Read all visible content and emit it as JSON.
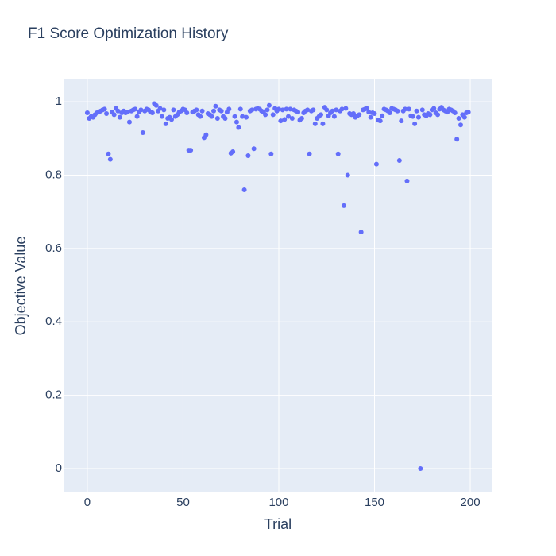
{
  "chart_data": {
    "type": "scatter",
    "title": "F1 Score Optimization History",
    "x_label": "Trial",
    "y_label": "Objective Value",
    "color": "#636efa",
    "grid": true,
    "xlim": [
      -12,
      211.6
    ],
    "ylim": [
      -0.065,
      1.061
    ],
    "xticks": [
      0,
      50,
      100,
      150,
      200
    ],
    "yticks": [
      0,
      0.2,
      0.4,
      0.6,
      0.8,
      1
    ],
    "x": [
      0,
      1,
      2,
      3,
      4,
      5,
      6,
      7,
      8,
      9,
      10,
      11,
      12,
      13,
      14,
      15,
      16,
      17,
      18,
      19,
      20,
      21,
      22,
      23,
      24,
      25,
      26,
      27,
      28,
      29,
      30,
      31,
      32,
      33,
      34,
      35,
      36,
      37,
      38,
      39,
      40,
      41,
      42,
      43,
      44,
      45,
      46,
      47,
      48,
      49,
      50,
      51,
      52,
      53,
      54,
      55,
      56,
      57,
      58,
      59,
      60,
      61,
      62,
      63,
      64,
      65,
      66,
      67,
      68,
      69,
      70,
      71,
      72,
      73,
      74,
      75,
      76,
      77,
      78,
      79,
      80,
      81,
      82,
      83,
      84,
      85,
      86,
      87,
      88,
      89,
      90,
      91,
      92,
      93,
      94,
      95,
      96,
      97,
      98,
      99,
      100,
      101,
      102,
      103,
      104,
      105,
      106,
      107,
      108,
      109,
      110,
      111,
      112,
      113,
      114,
      115,
      116,
      117,
      118,
      119,
      120,
      121,
      122,
      123,
      124,
      125,
      126,
      127,
      128,
      129,
      130,
      131,
      132,
      133,
      134,
      135,
      136,
      137,
      138,
      139,
      140,
      141,
      142,
      143,
      144,
      145,
      146,
      147,
      148,
      149,
      150,
      151,
      152,
      153,
      154,
      155,
      156,
      157,
      158,
      159,
      160,
      161,
      162,
      163,
      164,
      165,
      166,
      167,
      168,
      169,
      170,
      171,
      172,
      173,
      174,
      175,
      176,
      177,
      178,
      179,
      180,
      181,
      182,
      183,
      184,
      185,
      186,
      187,
      188,
      189,
      190,
      191,
      192,
      193,
      194,
      195,
      196,
      197,
      198,
      199
    ],
    "values": [
      0.97,
      0.955,
      0.96,
      0.958,
      0.965,
      0.97,
      0.972,
      0.975,
      0.978,
      0.98,
      0.968,
      0.858,
      0.843,
      0.972,
      0.965,
      0.982,
      0.975,
      0.958,
      0.97,
      0.975,
      0.97,
      0.972,
      0.945,
      0.975,
      0.978,
      0.98,
      0.96,
      0.972,
      0.978,
      0.916,
      0.975,
      0.98,
      0.978,
      0.972,
      0.97,
      0.995,
      0.99,
      0.975,
      0.982,
      0.96,
      0.978,
      0.94,
      0.955,
      0.958,
      0.952,
      0.978,
      0.96,
      0.965,
      0.972,
      0.975,
      0.98,
      0.978,
      0.97,
      0.868,
      0.868,
      0.972,
      0.975,
      0.978,
      0.965,
      0.96,
      0.975,
      0.902,
      0.91,
      0.968,
      0.965,
      0.96,
      0.975,
      0.988,
      0.955,
      0.978,
      0.975,
      0.96,
      0.955,
      0.972,
      0.98,
      0.86,
      0.864,
      0.96,
      0.945,
      0.93,
      0.98,
      0.96,
      0.76,
      0.958,
      0.853,
      0.975,
      0.978,
      0.872,
      0.98,
      0.982,
      0.98,
      0.975,
      0.972,
      0.965,
      0.978,
      0.99,
      0.858,
      0.965,
      0.982,
      0.975,
      0.98,
      0.948,
      0.978,
      0.952,
      0.98,
      0.96,
      0.98,
      0.955,
      0.978,
      0.975,
      0.972,
      0.95,
      0.955,
      0.97,
      0.975,
      0.978,
      0.858,
      0.975,
      0.978,
      0.94,
      0.955,
      0.96,
      0.965,
      0.94,
      0.985,
      0.978,
      0.962,
      0.97,
      0.975,
      0.96,
      0.978,
      0.858,
      0.975,
      0.98,
      0.717,
      0.982,
      0.8,
      0.968,
      0.965,
      0.968,
      0.958,
      0.962,
      0.965,
      0.645,
      0.978,
      0.98,
      0.982,
      0.972,
      0.958,
      0.97,
      0.968,
      0.83,
      0.95,
      0.948,
      0.962,
      0.98,
      0.978,
      0.975,
      0.97,
      0.982,
      0.98,
      0.978,
      0.975,
      0.84,
      0.948,
      0.975,
      0.98,
      0.784,
      0.98,
      0.962,
      0.96,
      0.94,
      0.975,
      0.958,
      0.0,
      0.978,
      0.965,
      0.962,
      0.968,
      0.965,
      0.978,
      0.982,
      0.97,
      0.965,
      0.98,
      0.985,
      0.978,
      0.975,
      0.972,
      0.98,
      0.978,
      0.975,
      0.97,
      0.898,
      0.955,
      0.937,
      0.965,
      0.958,
      0.97,
      0.972
    ]
  }
}
